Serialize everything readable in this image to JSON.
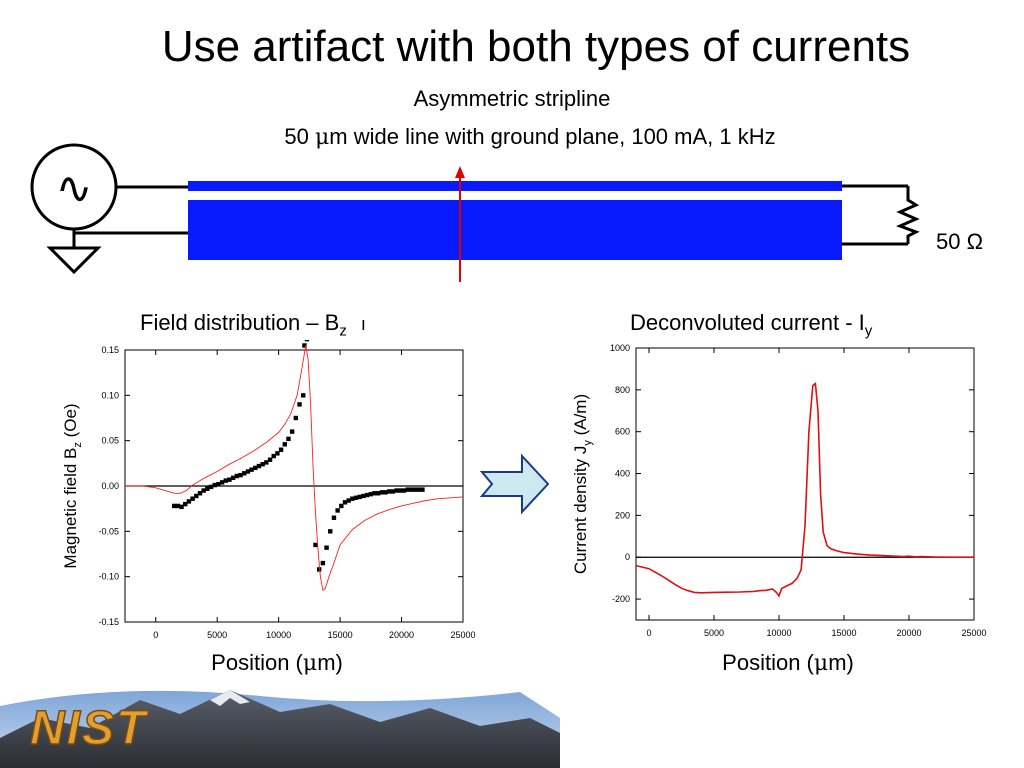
{
  "slide": {
    "title": "Use artifact with both types of currents",
    "subtitle": "Asymmetric stripline",
    "spec_prefix": "50 ",
    "spec_mu": "μ",
    "spec_suffix": "m wide line with ground plane, 100 mA, 1 kHz",
    "resistor_label": "50 Ω",
    "source_symbol": "∿",
    "logo_text": "NIST",
    "colors": {
      "stripline": "#0a1aff",
      "fit_line": "#ff2020",
      "arrow_fill": "#cde8ee",
      "arrow_stroke": "#1a3a88"
    }
  },
  "chart_data": [
    {
      "type": "scatter",
      "title_main": "Field distribution – B",
      "title_sub": "z",
      "title_trailing": "ı",
      "xlabel_main": "Position (",
      "xlabel_mu": "μ",
      "xlabel_end": "m)",
      "ylabel_main": "Magnetic field B",
      "ylabel_sub": "z",
      "ylabel_end": " (Oe)",
      "xlim": [
        -2500,
        25000
      ],
      "ylim": [
        -0.15,
        0.15
      ],
      "xticks": [
        0,
        5000,
        10000,
        15000,
        20000,
        25000
      ],
      "yticks": [
        -0.15,
        -0.1,
        -0.05,
        0.0,
        0.05,
        0.1,
        0.15
      ],
      "ytick_labels": [
        "-0.15",
        "-0.10",
        "-0.05",
        "0.00",
        "0.05",
        "0.10",
        "0.15"
      ],
      "zero_line": true,
      "series": [
        {
          "kind": "points",
          "x": [
            1500,
            1800,
            2100,
            2400,
            2700,
            3000,
            3300,
            3600,
            3900,
            4200,
            4500,
            4800,
            5100,
            5400,
            5700,
            6000,
            6300,
            6600,
            6900,
            7200,
            7500,
            7800,
            8100,
            8400,
            8700,
            9000,
            9300,
            9600,
            9900,
            10200,
            10500,
            10800,
            11100,
            11400,
            11700,
            12000,
            12100,
            12300,
            13000,
            13300,
            13600,
            13900,
            14200,
            14500,
            14800,
            15100,
            15400,
            15700,
            16000,
            16300,
            16600,
            16900,
            17200,
            17500,
            17800,
            18100,
            18400,
            18700,
            19000,
            19300,
            19600,
            19900,
            20200,
            20500,
            20800,
            21100,
            21400,
            21700
          ],
          "y": [
            -0.022,
            -0.022,
            -0.023,
            -0.02,
            -0.017,
            -0.014,
            -0.011,
            -0.008,
            -0.005,
            -0.003,
            -0.001,
            0.001,
            0.002,
            0.004,
            0.006,
            0.007,
            0.009,
            0.011,
            0.012,
            0.014,
            0.016,
            0.018,
            0.02,
            0.022,
            0.024,
            0.026,
            0.029,
            0.033,
            0.036,
            0.04,
            0.046,
            0.052,
            0.06,
            0.075,
            0.09,
            0.1,
            0.155,
            0.162,
            -0.065,
            -0.092,
            -0.085,
            -0.068,
            -0.05,
            -0.035,
            -0.027,
            -0.022,
            -0.018,
            -0.016,
            -0.014,
            -0.013,
            -0.012,
            -0.011,
            -0.01,
            -0.009,
            -0.008,
            -0.008,
            -0.007,
            -0.007,
            -0.006,
            -0.006,
            -0.005,
            -0.005,
            -0.005,
            -0.004,
            -0.004,
            -0.004,
            -0.004,
            -0.004
          ]
        },
        {
          "kind": "line",
          "x": [
            -2500,
            -1000,
            0,
            1000,
            1500,
            2000,
            2500,
            3000,
            4000,
            5000,
            6000,
            7000,
            8000,
            9000,
            10000,
            10500,
            11000,
            11500,
            11900,
            12200,
            12400,
            12600,
            12800,
            13000,
            13200,
            13400,
            13600,
            13800,
            14100,
            14500,
            15000,
            16000,
            17000,
            18000,
            19000,
            20000,
            21000,
            22000,
            23000,
            24000,
            25000
          ],
          "y": [
            0,
            0,
            -0.002,
            -0.006,
            -0.008,
            -0.008,
            -0.005,
            0.001,
            0.009,
            0.016,
            0.024,
            0.031,
            0.039,
            0.048,
            0.059,
            0.068,
            0.08,
            0.1,
            0.13,
            0.155,
            0.14,
            0.09,
            0.02,
            -0.03,
            -0.07,
            -0.1,
            -0.115,
            -0.113,
            -0.1,
            -0.085,
            -0.065,
            -0.048,
            -0.038,
            -0.031,
            -0.026,
            -0.022,
            -0.019,
            -0.016,
            -0.014,
            -0.013,
            -0.012
          ]
        }
      ]
    },
    {
      "type": "line",
      "title_main": "Deconvoluted current - I",
      "title_sub": "y",
      "xlabel_main": "Position (",
      "xlabel_mu": "μ",
      "xlabel_end": "m)",
      "ylabel_main": "Current density J",
      "ylabel_sub": "y",
      "ylabel_end": " (A/m)",
      "xlim": [
        -1000,
        25000
      ],
      "ylim": [
        -300,
        1000
      ],
      "xticks": [
        0,
        5000,
        10000,
        15000,
        20000,
        25000
      ],
      "yticks": [
        -200,
        0,
        200,
        400,
        600,
        800,
        1000
      ],
      "ytick_labels": [
        "-200",
        "0",
        "200",
        "400",
        "600",
        "800",
        "1000"
      ],
      "zero_line": true,
      "series": [
        {
          "kind": "line",
          "x": [
            -1000,
            0,
            1000,
            1500,
            2000,
            2500,
            3000,
            3500,
            4000,
            5000,
            6000,
            7000,
            8000,
            8500,
            9000,
            9500,
            9800,
            10000,
            10200,
            10500,
            11000,
            11400,
            11700,
            12000,
            12300,
            12600,
            12800,
            13000,
            13200,
            13400,
            13700,
            14000,
            14500,
            15000,
            16000,
            17000,
            18000,
            19000,
            19500,
            20000,
            20500,
            21000,
            22000,
            23000,
            24000,
            25000
          ],
          "y": [
            -40,
            -55,
            -90,
            -110,
            -130,
            -148,
            -160,
            -168,
            -170,
            -168,
            -167,
            -166,
            -164,
            -160,
            -158,
            -152,
            -168,
            -185,
            -150,
            -140,
            -125,
            -100,
            -60,
            150,
            600,
            820,
            830,
            700,
            300,
            120,
            55,
            40,
            30,
            22,
            15,
            10,
            8,
            5,
            3,
            5,
            2,
            3,
            1,
            0,
            0,
            0
          ]
        }
      ]
    }
  ]
}
